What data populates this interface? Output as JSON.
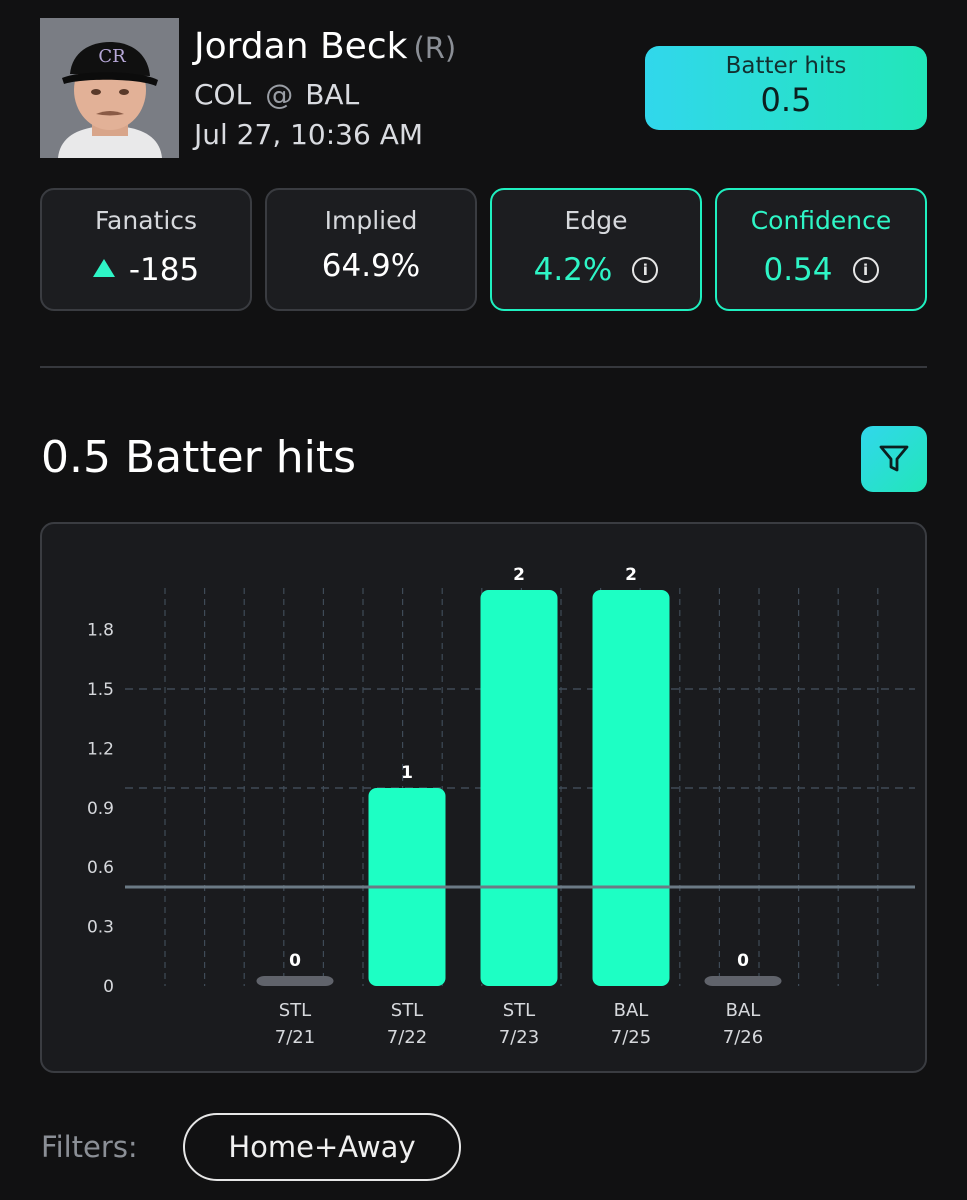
{
  "player": {
    "name": "Jordan Beck",
    "hand": "(R)",
    "team": "COL",
    "at_symbol": "@",
    "opponent": "BAL",
    "datetime": "Jul 27, 10:36 AM"
  },
  "market": {
    "label": "Batter hits",
    "line": "0.5"
  },
  "stats": {
    "book": {
      "title": "Fanatics",
      "odds": "-185",
      "icon": "up-triangle-icon"
    },
    "implied": {
      "title": "Implied",
      "value": "64.9%"
    },
    "edge": {
      "title": "Edge",
      "value": "4.2%",
      "icon": "info-icon"
    },
    "confidence": {
      "title": "Confidence",
      "value": "0.54",
      "icon": "info-icon"
    }
  },
  "section": {
    "title": "0.5 Batter hits",
    "filter_icon": "funnel-icon"
  },
  "chart_data": {
    "type": "bar",
    "categories": [
      "STL 7/21",
      "STL 7/22",
      "STL 7/23",
      "BAL 7/25",
      "BAL 7/26"
    ],
    "category_team": [
      "STL",
      "STL",
      "STL",
      "BAL",
      "BAL"
    ],
    "category_date": [
      "7/21",
      "7/22",
      "7/23",
      "7/25",
      "7/26"
    ],
    "values": [
      0,
      1,
      2,
      2,
      0
    ],
    "data_labels": [
      "0",
      "1",
      "2",
      "2",
      "0"
    ],
    "yticks": [
      0,
      0.3,
      0.6,
      0.9,
      1.2,
      1.5,
      1.8
    ],
    "ytick_labels": [
      "0",
      "0.3",
      "0.6",
      "0.9",
      "1.2",
      "1.5",
      "1.8"
    ],
    "ylim": [
      0,
      2
    ],
    "threshold": 0.5,
    "colors": {
      "hit": "#1dffc4",
      "miss": "#60636b",
      "threshold": "#6b7a85",
      "grid": "#3f4b57"
    },
    "grid": true
  },
  "filters": {
    "label": "Filters:",
    "selected": "Home+Away"
  },
  "theme": {
    "accent": "#1ff0c0",
    "background": "#111112"
  }
}
